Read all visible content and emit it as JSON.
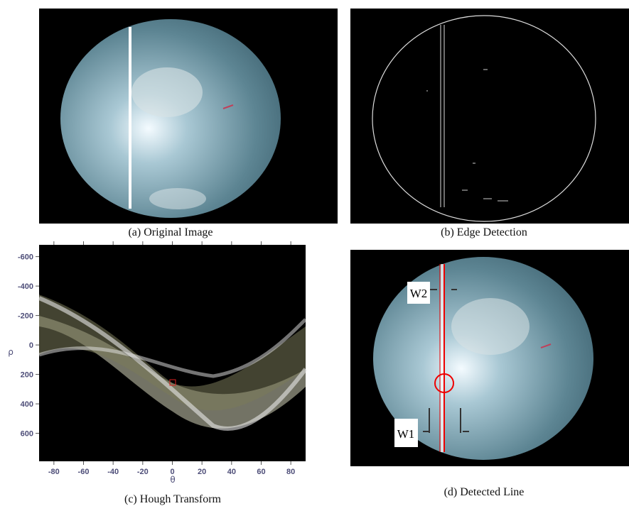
{
  "panels": {
    "a": {
      "caption": "(a) Original Image"
    },
    "b": {
      "caption": "(b) Edge Detection"
    },
    "c": {
      "caption": "(c) Hough Transform",
      "xlabel": "θ",
      "ylabel": "ρ",
      "xlim": [
        -90,
        90
      ],
      "ylim": [
        -680,
        790
      ],
      "xticks": [
        -80,
        -60,
        -40,
        -20,
        0,
        20,
        40,
        60,
        80
      ],
      "yticks": [
        -600,
        -400,
        -200,
        0,
        200,
        400,
        600
      ]
    },
    "d": {
      "caption": "(d) Detected Line",
      "w2": "W2",
      "w1": "W1"
    }
  }
}
